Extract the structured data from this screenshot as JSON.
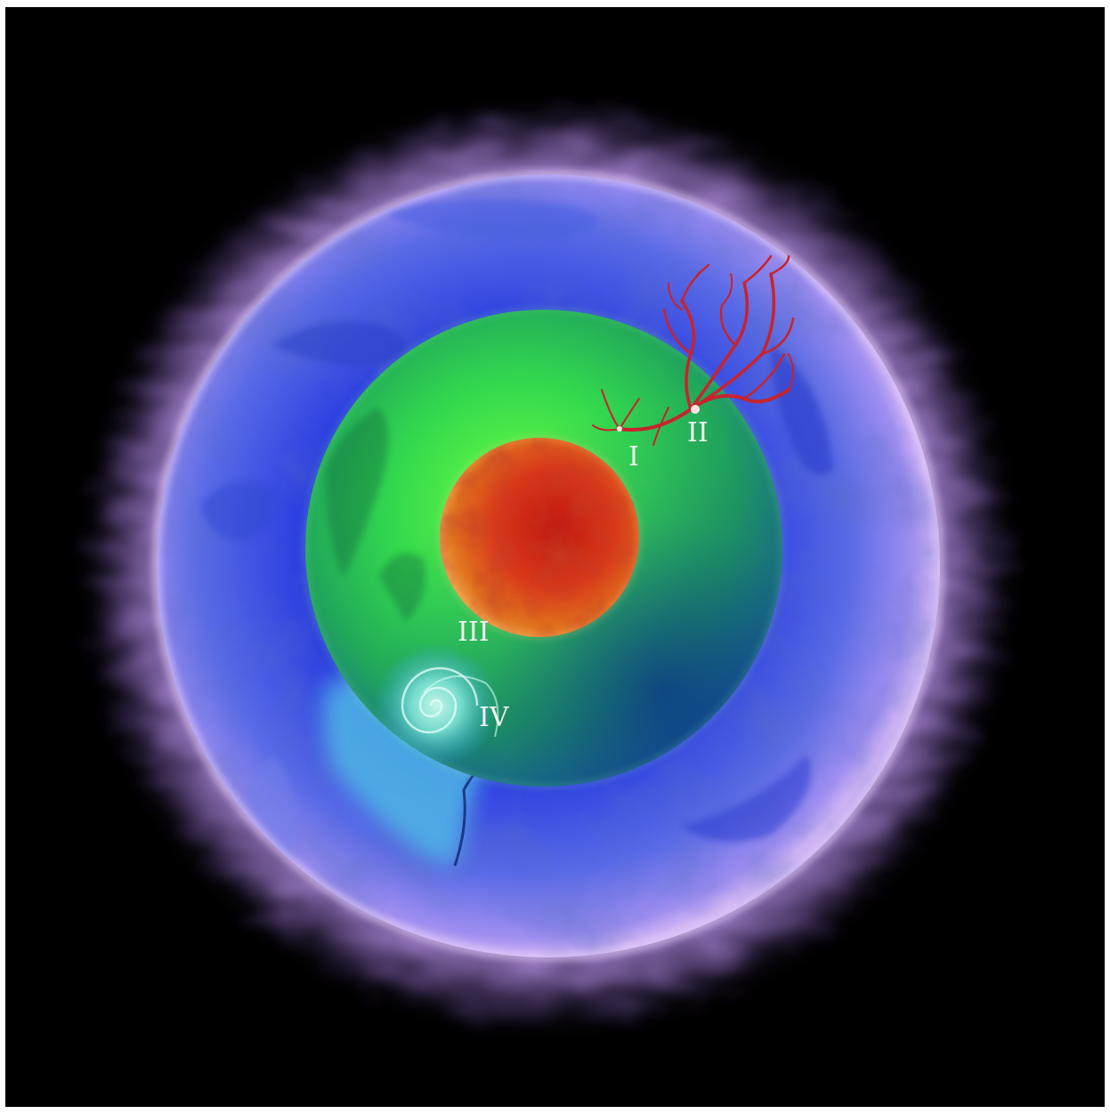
{
  "labels": {
    "I": "I",
    "II": "II",
    "III": "III",
    "IV": "IV"
  },
  "colors": {
    "background": "#000000",
    "corona": "#c9a6f0",
    "outer_shell": "#8e7be6",
    "outer_shell_deep": "#1a2fd8",
    "middle_shell": "#35d85a",
    "core": "#d84a1c",
    "vessel": "#c8232c",
    "vortex": "#8fe6e0",
    "label": "#f2f2f2"
  },
  "icons": {
    "vessel_cluster": "branching-vessel-icon",
    "vortex": "spiral-vortex-icon"
  }
}
